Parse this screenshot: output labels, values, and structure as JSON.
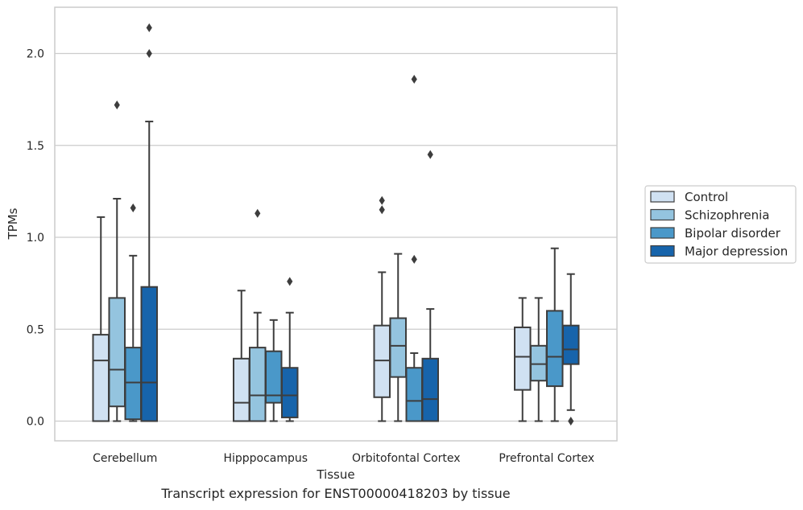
{
  "caption": "Transcript expression for ENST00000418203 by tissue",
  "chart_data": {
    "type": "box",
    "title": "",
    "xlabel": "Tissue",
    "ylabel": "TPMs",
    "ylim": [
      -0.1,
      2.26
    ],
    "yticks": [
      0.0,
      0.5,
      1.0,
      1.5,
      2.0
    ],
    "ytick_labels": [
      "0.0",
      "0.5",
      "1.0",
      "1.5",
      "2.0"
    ],
    "grid": "horizontal",
    "legend_position": "right",
    "categories": [
      "Cerebellum",
      "Hipppocampus",
      "Orbitofontal Cortex",
      "Prefrontal Cortex"
    ],
    "series": [
      {
        "name": "Control",
        "color": "#d0e1f2",
        "boxes": [
          {
            "min": 0.0,
            "q1": 0.0,
            "median": 0.33,
            "q3": 0.47,
            "max": 1.11,
            "outliers": []
          },
          {
            "min": 0.0,
            "q1": 0.0,
            "median": 0.1,
            "q3": 0.34,
            "max": 0.71,
            "outliers": []
          },
          {
            "min": 0.0,
            "q1": 0.13,
            "median": 0.33,
            "q3": 0.52,
            "max": 0.81,
            "outliers": [
              1.15,
              1.2
            ]
          },
          {
            "min": 0.0,
            "q1": 0.17,
            "median": 0.35,
            "q3": 0.51,
            "max": 0.67,
            "outliers": []
          }
        ]
      },
      {
        "name": "Schizophrenia",
        "color": "#94c4df",
        "boxes": [
          {
            "min": 0.0,
            "q1": 0.08,
            "median": 0.28,
            "q3": 0.67,
            "max": 1.21,
            "outliers": [
              1.72
            ]
          },
          {
            "min": 0.0,
            "q1": 0.0,
            "median": 0.14,
            "q3": 0.4,
            "max": 0.59,
            "outliers": [
              1.13
            ]
          },
          {
            "min": 0.0,
            "q1": 0.24,
            "median": 0.41,
            "q3": 0.56,
            "max": 0.91,
            "outliers": []
          },
          {
            "min": 0.0,
            "q1": 0.22,
            "median": 0.31,
            "q3": 0.41,
            "max": 0.67,
            "outliers": []
          }
        ]
      },
      {
        "name": "Bipolar disorder",
        "color": "#4a98c9",
        "boxes": [
          {
            "min": 0.0,
            "q1": 0.01,
            "median": 0.21,
            "q3": 0.4,
            "max": 0.9,
            "outliers": [
              1.16
            ]
          },
          {
            "min": 0.0,
            "q1": 0.1,
            "median": 0.14,
            "q3": 0.38,
            "max": 0.55,
            "outliers": []
          },
          {
            "min": 0.0,
            "q1": 0.0,
            "median": 0.11,
            "q3": 0.29,
            "max": 0.37,
            "outliers": [
              0.88,
              1.86
            ]
          },
          {
            "min": 0.0,
            "q1": 0.19,
            "median": 0.35,
            "q3": 0.6,
            "max": 0.94,
            "outliers": []
          }
        ]
      },
      {
        "name": "Major depression",
        "color": "#1764ab",
        "boxes": [
          {
            "min": 0.0,
            "q1": 0.0,
            "median": 0.21,
            "q3": 0.73,
            "max": 1.63,
            "outliers": [
              2.0,
              2.14
            ]
          },
          {
            "min": 0.0,
            "q1": 0.02,
            "median": 0.14,
            "q3": 0.29,
            "max": 0.59,
            "outliers": [
              0.76
            ]
          },
          {
            "min": 0.0,
            "q1": 0.0,
            "median": 0.12,
            "q3": 0.34,
            "max": 0.61,
            "outliers": [
              1.45
            ]
          },
          {
            "min": 0.06,
            "q1": 0.31,
            "median": 0.39,
            "q3": 0.52,
            "max": 0.8,
            "outliers": [
              0.0
            ]
          }
        ]
      }
    ]
  }
}
